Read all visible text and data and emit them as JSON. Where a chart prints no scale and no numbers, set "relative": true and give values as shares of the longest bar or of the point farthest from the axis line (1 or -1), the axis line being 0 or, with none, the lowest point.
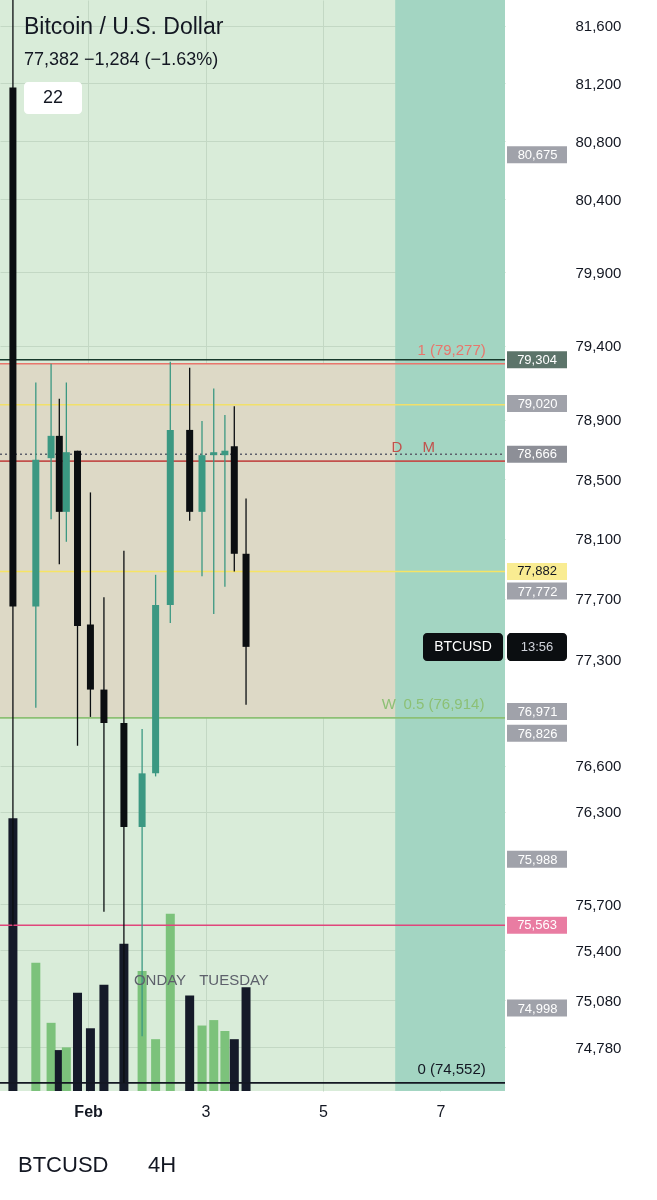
{
  "chart_data": [
    {
      "type": "candlestick",
      "title": "Bitcoin / U.S. Dollar",
      "subtitle": "77,382 −1,284 (−1.63%)",
      "x": [
        -0.28,
        0.11,
        0.37,
        0.51,
        0.63,
        0.82,
        1.04,
        1.27,
        1.61,
        1.92,
        2.15,
        2.4,
        2.73,
        2.94,
        3.14,
        3.33,
        3.49,
        3.69
      ],
      "ohlc": [
        [
          81170,
          81780,
          75560,
          77650
        ],
        [
          77650,
          79150,
          76980,
          78630
        ],
        [
          78640,
          79277,
          78230,
          78790
        ],
        [
          78790,
          79040,
          77930,
          78280
        ],
        [
          78280,
          79150,
          78080,
          78680
        ],
        [
          78690,
          78690,
          76730,
          77520
        ],
        [
          77530,
          78410,
          76920,
          77100
        ],
        [
          77100,
          77710,
          75650,
          76880
        ],
        [
          76880,
          78020,
          74552,
          76200
        ],
        [
          76200,
          76840,
          74850,
          76550
        ],
        [
          76550,
          77860,
          76530,
          77660
        ],
        [
          77660,
          79290,
          77540,
          78830
        ],
        [
          78830,
          79250,
          78220,
          78280
        ],
        [
          78280,
          78890,
          77850,
          78660
        ],
        [
          78660,
          79110,
          77600,
          78680
        ],
        [
          78660,
          78930,
          77780,
          78690
        ],
        [
          78720,
          78990,
          77882,
          78000
        ],
        [
          78000,
          78370,
          77000,
          77382
        ]
      ],
      "colors": [
        "#0b0e11",
        "#3b9882",
        "#3b9882",
        "#0b0e11",
        "#3b9882",
        "#0b0e11",
        "#0b0e11",
        "#0b0e11",
        "#0b0e11",
        "#3b9882",
        "#3b9882",
        "#3b9882",
        "#0b0e11",
        "#3b9882",
        "#3b9882",
        "#3b9882",
        "#0b0e11",
        "#0b0e11"
      ],
      "xlim": [
        -0.5,
        8.1
      ],
      "xticks": [
        {
          "value": 1,
          "label": "Feb"
        },
        3,
        5,
        7
      ],
      "ylim": [
        74500,
        81780
      ],
      "yticks": [
        {
          "value": 74780,
          "label": "74,780"
        },
        {
          "value": 75080,
          "label": "75,080"
        },
        {
          "value": 75400,
          "label": "75,400"
        },
        {
          "value": 75700,
          "label": "75,700"
        },
        {
          "value": 76300,
          "label": "76,300"
        },
        {
          "value": 76600,
          "label": "76,600"
        },
        {
          "value": 77300,
          "label": "77,300"
        },
        {
          "value": 77700,
          "label": "77,700"
        },
        {
          "value": 78100,
          "label": "78,100"
        },
        {
          "value": 78500,
          "label": "78,500"
        },
        {
          "value": 78900,
          "label": "78,900"
        },
        {
          "value": 79400,
          "label": "79,400"
        },
        {
          "value": 79900,
          "label": "79,900"
        },
        {
          "value": 80400,
          "label": "80,400"
        },
        {
          "value": 80800,
          "label": "80,800"
        },
        {
          "value": 81200,
          "label": "81,200"
        },
        {
          "value": 81600,
          "label": "81,600"
        }
      ],
      "y2lim": [
        74446,
        81705
      ],
      "y2ticks": [
        {
          "value": 74998,
          "label": "74,998"
        },
        {
          "value": 75988,
          "label": "75,988"
        },
        {
          "value": 76826,
          "label": "76,826"
        },
        {
          "value": 76971,
          "label": "76,971"
        },
        {
          "value": 77772,
          "label": "77,772"
        },
        {
          "value": 79020,
          "label": "79,020"
        },
        {
          "value": 80675,
          "label": "80,675"
        }
      ],
      "log": "y",
      "grid": true,
      "bands": [
        {
          "axis": "y",
          "from": 76914,
          "to": 79277,
          "color": "#ddd9c6"
        },
        {
          "axis": "x",
          "from": 6.23,
          "to": 8.1,
          "color": "#a3d5c2"
        }
      ],
      "ref_lines": [
        {
          "axis": "y",
          "value": 79304,
          "label": "79,304",
          "color": "#17392b"
        },
        {
          "axis": "y",
          "value": 79277,
          "color": "#e8766c"
        },
        {
          "axis": "y",
          "value": 79000,
          "color": "#f1e06a"
        },
        {
          "axis": "y",
          "value": 78666,
          "label": "78,666",
          "color": "#5d606b",
          "line_style": "dotted"
        },
        {
          "axis": "y",
          "value": 78620,
          "color": "#c2514c"
        },
        {
          "axis": "y",
          "value": 77882,
          "label": "77,882",
          "color": "#f6e464"
        },
        {
          "axis": "y",
          "value": 76914,
          "color": "#8cc075"
        },
        {
          "axis": "y",
          "value": 75563,
          "label": "75,563",
          "color": "#e0457b"
        },
        {
          "axis": "y",
          "value": 74552,
          "color": "#131722"
        }
      ],
      "annotations": [
        "22",
        "BTCUSD",
        "4H",
        "BTCUSD",
        "13:56",
        "ONDAY",
        "TUESDAY",
        {
          "text": "1 (79,277)",
          "x": 7.19,
          "y": 79277
        },
        {
          "text": "0.5 (76,914)",
          "x": 7.06,
          "y": 76914
        },
        {
          "text": "0 (74,552)",
          "x": 7.19,
          "y": 74552
        },
        {
          "text": "D",
          "x": 6.26,
          "y": 78620
        },
        {
          "text": "M",
          "x": 6.8,
          "y": 78620
        },
        {
          "text": "W",
          "x": 6.12,
          "y": 76914
        }
      ]
    },
    {
      "type": "bar",
      "relative": true,
      "x": [
        -0.28,
        0.11,
        0.37,
        0.51,
        0.63,
        0.82,
        1.04,
        1.27,
        1.61,
        1.92,
        2.15,
        2.4,
        2.73,
        2.94,
        3.14,
        3.33,
        3.49,
        3.69
      ],
      "xlim": [
        -0.5,
        8.1
      ],
      "values": [
        1.0,
        0.47,
        0.25,
        0.15,
        0.16,
        0.36,
        0.23,
        0.39,
        0.54,
        0.44,
        0.19,
        0.65,
        0.35,
        0.24,
        0.26,
        0.22,
        0.19,
        0.38
      ],
      "colors": [
        "#151a29",
        "#7cc27b",
        "#7cc27b",
        "#151a29",
        "#7cc27b",
        "#151a29",
        "#151a29",
        "#151a29",
        "#151a29",
        "#7cc27b",
        "#7cc27b",
        "#7cc27b",
        "#151a29",
        "#7cc27b",
        "#7cc27b",
        "#7cc27b",
        "#151a29",
        "#151a29"
      ]
    }
  ]
}
